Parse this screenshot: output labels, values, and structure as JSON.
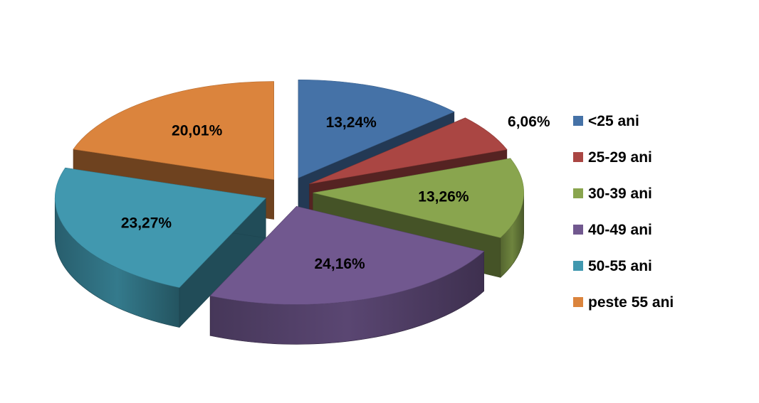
{
  "chart_data": {
    "type": "pie",
    "title": "",
    "categories": [
      "<25 ani",
      "25-29 ani",
      "30-39 ani",
      "40-49 ani",
      "50-55 ani",
      "peste 55 ani"
    ],
    "values": [
      13.24,
      6.06,
      13.26,
      24.16,
      23.27,
      20.01
    ],
    "labels": [
      "13,24%",
      "6,06%",
      "13,26%",
      "24,16%",
      "23,27%",
      "20,01%"
    ],
    "colors": [
      "#4572A7",
      "#AA4643",
      "#89A54E",
      "#71588F",
      "#4198AF",
      "#DB843D"
    ],
    "legend_position": "right",
    "style": "3d-exploded"
  }
}
